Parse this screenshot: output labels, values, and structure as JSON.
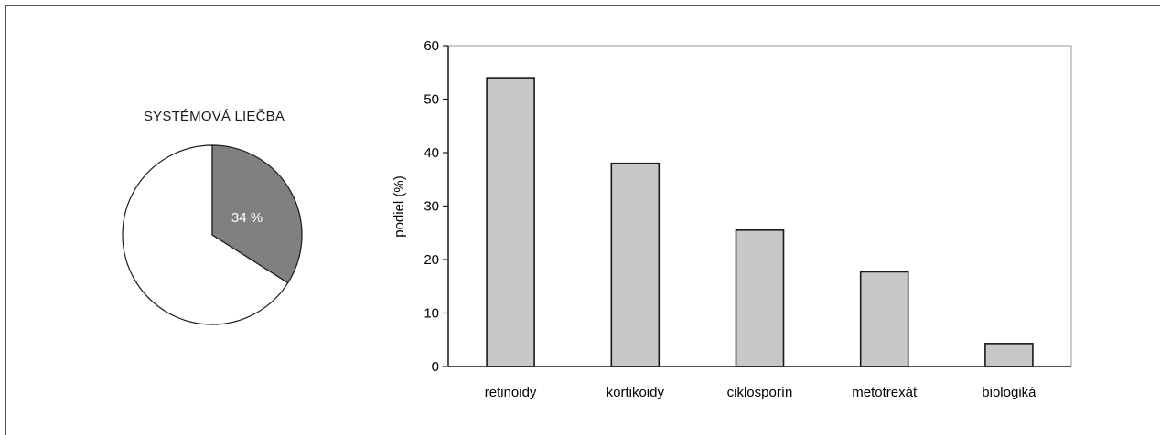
{
  "chart_data": [
    {
      "type": "pie",
      "title": "SYSTÉMOVÁ LIEČBA",
      "slices": [
        {
          "label": "34 %",
          "value": 34,
          "color": "#808083"
        },
        {
          "label": "",
          "value": 66,
          "color": "#ffffff"
        }
      ]
    },
    {
      "type": "bar",
      "categories": [
        "retinoidy",
        "kortikoidy",
        "ciklosporín",
        "metotrexát",
        "biologiká"
      ],
      "values": [
        54,
        38,
        25.5,
        17.7,
        4.3
      ],
      "ylabel": "podiel (%)",
      "ylim": [
        0,
        60
      ],
      "yticks": [
        "0",
        "10",
        "20",
        "30",
        "40",
        "50",
        "60"
      ],
      "bar_color": "#c8c8ca",
      "grid": false
    }
  ]
}
